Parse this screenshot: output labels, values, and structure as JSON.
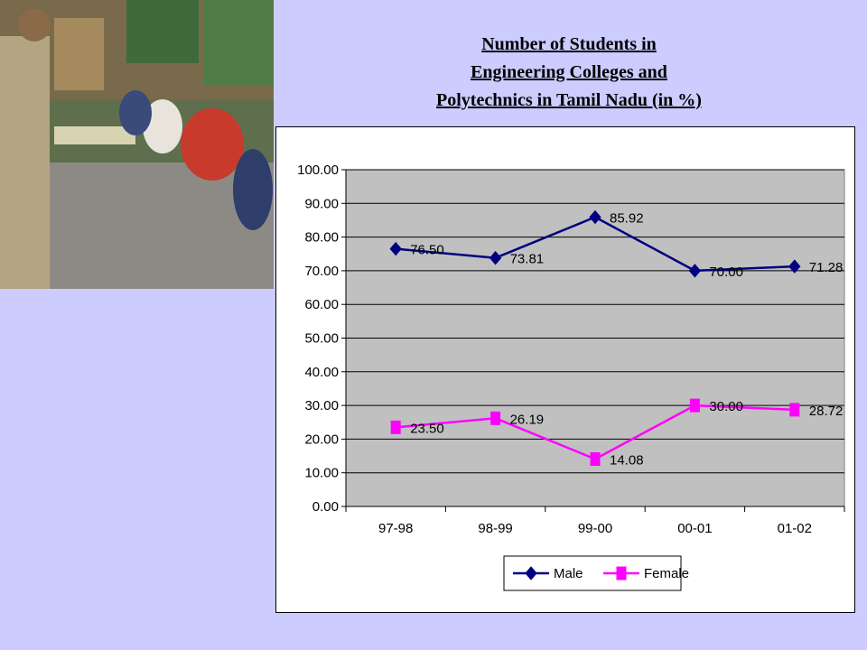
{
  "title_lines": [
    "Number of Students in",
    "Engineering Colleges and",
    "Polytechnics in Tamil Nadu  (in %)"
  ],
  "colors": {
    "background": "#ccccff",
    "plot_area": "#c0c0c0",
    "male": "#000080",
    "female": "#ff00ff"
  },
  "chart_data": {
    "type": "line",
    "categories": [
      "97-98",
      "98-99",
      "99-00",
      "00-01",
      "01-02"
    ],
    "series": [
      {
        "name": "Male",
        "values": [
          76.5,
          73.81,
          85.92,
          70.0,
          71.28
        ],
        "labels": [
          "76.50",
          "73.81",
          "85.92",
          "70.00",
          "71.28"
        ],
        "color": "#000080",
        "marker": "diamond"
      },
      {
        "name": "Female",
        "values": [
          23.5,
          26.19,
          14.08,
          30.0,
          28.72
        ],
        "labels": [
          "23.50",
          "26.19",
          "14.08",
          "30.00",
          "28.72"
        ],
        "color": "#ff00ff",
        "marker": "square"
      }
    ],
    "y_ticks": [
      "0.00",
      "10.00",
      "20.00",
      "30.00",
      "40.00",
      "50.00",
      "60.00",
      "70.00",
      "80.00",
      "90.00",
      "100.00"
    ],
    "ylim": [
      0,
      100
    ],
    "grid": true,
    "legend": "bottom"
  }
}
